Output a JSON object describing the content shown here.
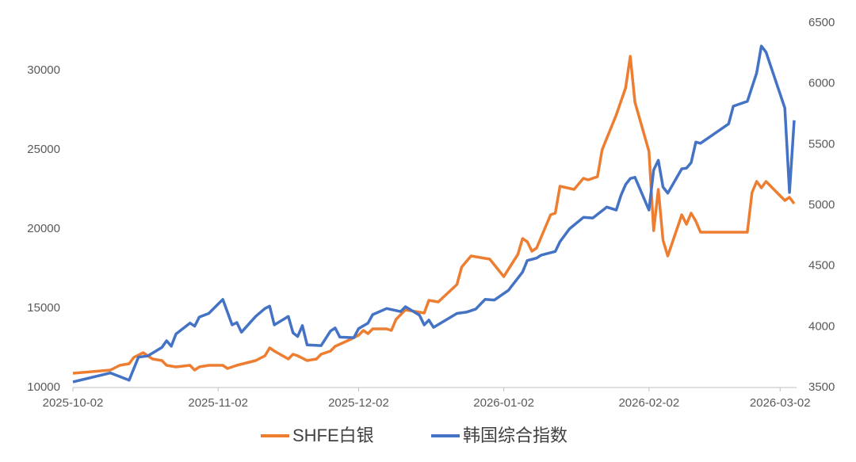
{
  "chart_data": {
    "type": "line",
    "xticks": [
      "2025-10-02",
      "2025-11-02",
      "2025-12-02",
      "2026-01-02",
      "2026-02-02",
      "2026-03-02"
    ],
    "xlim": [
      "2025-10-02",
      "2026-03-05"
    ],
    "ylim": [
      10000,
      33000
    ],
    "yticks": [
      10000,
      15000,
      20000,
      25000,
      30000
    ],
    "y2lim": [
      3500,
      6500
    ],
    "y2ticks": [
      3500,
      4000,
      4500,
      5000,
      5500,
      6000,
      6500
    ],
    "grid": false,
    "legend": "bottom",
    "series": [
      {
        "name": "SHFE白银",
        "color": "#ed7d31",
        "x": [
          "2025-10-02",
          "2025-10-10",
          "2025-10-12",
          "2025-10-14",
          "2025-10-15",
          "2025-10-17",
          "2025-10-19",
          "2025-10-21",
          "2025-10-22",
          "2025-10-24",
          "2025-10-27",
          "2025-10-28",
          "2025-10-29",
          "2025-10-31",
          "2025-11-03",
          "2025-11-04",
          "2025-11-06",
          "2025-11-10",
          "2025-11-12",
          "2025-11-13",
          "2025-11-14",
          "2025-11-17",
          "2025-11-18",
          "2025-11-19",
          "2025-11-21",
          "2025-11-23",
          "2025-11-24",
          "2025-11-26",
          "2025-11-27",
          "2025-11-30",
          "2025-12-02",
          "2025-12-03",
          "2025-12-04",
          "2025-12-05",
          "2025-12-08",
          "2025-12-09",
          "2025-12-10",
          "2025-12-11",
          "2025-12-12",
          "2025-12-16",
          "2025-12-17",
          "2025-12-19",
          "2025-12-23",
          "2025-12-24",
          "2025-12-26",
          "2025-12-30",
          "2026-01-02",
          "2026-01-05",
          "2026-01-06",
          "2026-01-07",
          "2026-01-08",
          "2026-01-09",
          "2026-01-12",
          "2026-01-13",
          "2026-01-14",
          "2026-01-17",
          "2026-01-19",
          "2026-01-20",
          "2026-01-22",
          "2026-01-23",
          "2026-01-26",
          "2026-01-28",
          "2026-01-29",
          "2026-01-30",
          "2026-02-02",
          "2026-02-03",
          "2026-02-04",
          "2026-02-05",
          "2026-02-06",
          "2026-02-09",
          "2026-02-10",
          "2026-02-11",
          "2026-02-12",
          "2026-02-13",
          "2026-02-23",
          "2026-02-24",
          "2026-02-25",
          "2026-02-26",
          "2026-02-27",
          "2026-03-03",
          "2026-03-04",
          "2026-03-05"
        ],
        "values": [
          10900,
          11100,
          11400,
          11500,
          11900,
          12200,
          11800,
          11700,
          11400,
          11300,
          11400,
          11100,
          11300,
          11400,
          11400,
          11200,
          11400,
          11700,
          12000,
          12500,
          12300,
          11800,
          12100,
          12000,
          11700,
          11800,
          12100,
          12300,
          12600,
          13000,
          13300,
          13600,
          13400,
          13700,
          13700,
          13600,
          14300,
          14600,
          14900,
          14700,
          15500,
          15400,
          16500,
          17600,
          18300,
          18100,
          17000,
          18400,
          19400,
          19200,
          18600,
          18800,
          20900,
          21000,
          22700,
          22500,
          23200,
          23100,
          23300,
          25000,
          27200,
          28900,
          30900,
          28000,
          24900,
          19900,
          22500,
          19300,
          18300,
          20900,
          20300,
          21000,
          20500,
          19800,
          19800,
          22300,
          23000,
          22600,
          23000,
          21800,
          22000,
          21600
        ]
      },
      {
        "name": "韩国综合指数",
        "color": "#4472c4",
        "axis": "y2",
        "x": [
          "2025-10-02",
          "2025-10-10",
          "2025-10-14",
          "2025-10-16",
          "2025-10-18",
          "2025-10-21",
          "2025-10-22",
          "2025-10-23",
          "2025-10-24",
          "2025-10-27",
          "2025-10-28",
          "2025-10-29",
          "2025-10-31",
          "2025-11-03",
          "2025-11-05",
          "2025-11-06",
          "2025-11-07",
          "2025-11-10",
          "2025-11-12",
          "2025-11-13",
          "2025-11-14",
          "2025-11-17",
          "2025-11-18",
          "2025-11-19",
          "2025-11-20",
          "2025-11-21",
          "2025-11-24",
          "2025-11-26",
          "2025-11-27",
          "2025-11-28",
          "2025-12-01",
          "2025-12-02",
          "2025-12-04",
          "2025-12-05",
          "2025-12-08",
          "2025-12-11",
          "2025-12-12",
          "2025-12-15",
          "2025-12-16",
          "2025-12-17",
          "2025-12-18",
          "2025-12-23",
          "2025-12-25",
          "2025-12-27",
          "2025-12-29",
          "2025-12-31",
          "2026-01-03",
          "2026-01-06",
          "2026-01-07",
          "2026-01-09",
          "2026-01-10",
          "2026-01-13",
          "2026-01-14",
          "2026-01-16",
          "2026-01-19",
          "2026-01-21",
          "2026-01-24",
          "2026-01-26",
          "2026-01-27",
          "2026-01-28",
          "2026-01-29",
          "2026-01-30",
          "2026-02-02",
          "2026-02-03",
          "2026-02-04",
          "2026-02-05",
          "2026-02-06",
          "2026-02-09",
          "2026-02-10",
          "2026-02-11",
          "2026-02-12",
          "2026-02-13",
          "2026-02-19",
          "2026-02-20",
          "2026-02-23",
          "2026-02-25",
          "2026-02-26",
          "2026-02-27",
          "2026-03-03",
          "2026-03-04",
          "2026-03-05"
        ],
        "values": [
          3546,
          3620,
          3560,
          3750,
          3760,
          3830,
          3885,
          3840,
          3940,
          4030,
          4005,
          4080,
          4110,
          4225,
          4015,
          4035,
          3955,
          4085,
          4150,
          4170,
          4015,
          4085,
          3950,
          3920,
          4010,
          3850,
          3845,
          3965,
          3990,
          3915,
          3910,
          3985,
          4030,
          4100,
          4150,
          4125,
          4165,
          4095,
          4015,
          4055,
          3995,
          4110,
          4120,
          4145,
          4225,
          4220,
          4300,
          4450,
          4545,
          4565,
          4590,
          4620,
          4700,
          4805,
          4900,
          4895,
          4985,
          4960,
          5080,
          5170,
          5220,
          5230,
          4960,
          5290,
          5370,
          5150,
          5100,
          5300,
          5305,
          5350,
          5520,
          5510,
          5670,
          5815,
          5855,
          6090,
          6310,
          6260,
          5800,
          5105,
          5700
        ]
      }
    ]
  }
}
